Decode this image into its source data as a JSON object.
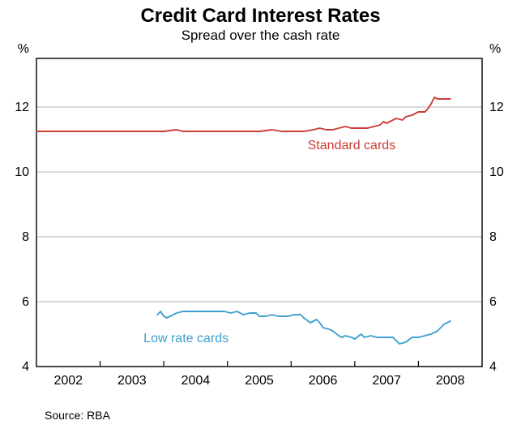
{
  "header": {
    "title": "Credit Card Interest Rates",
    "subtitle": "Spread over the cash rate"
  },
  "footer": {
    "source": "Source: RBA"
  },
  "chart_data": {
    "type": "line",
    "title": "Credit Card Interest Rates",
    "subtitle": "Spread over the cash rate",
    "unit_label": "%",
    "source": "Source: RBA",
    "xlim": [
      2001.5,
      2008.5
    ],
    "ylim": [
      4,
      13.5
    ],
    "gridlines": [
      6,
      8,
      10,
      12
    ],
    "y_ticks": [
      4,
      6,
      8,
      10,
      12
    ],
    "x_year_labels": [
      "2002",
      "2003",
      "2004",
      "2005",
      "2006",
      "2007",
      "2008"
    ],
    "x_year_positions": [
      2002,
      2003,
      2004,
      2005,
      2006,
      2007,
      2008
    ],
    "x_tick_positions": [
      2002.5,
      2003.5,
      2004.5,
      2005.5,
      2006.5,
      2007.5
    ],
    "grid_color": "#b5b5b5",
    "axis_color": "#000000",
    "series": [
      {
        "name": "Standard cards",
        "color": "#cb3d35",
        "label_pos": {
          "x": 2006.45,
          "y": 10.7
        },
        "points": [
          [
            2001.5,
            11.25
          ],
          [
            2002.0,
            11.25
          ],
          [
            2002.5,
            11.25
          ],
          [
            2003.0,
            11.25
          ],
          [
            2003.5,
            11.25
          ],
          [
            2003.7,
            11.3
          ],
          [
            2003.8,
            11.25
          ],
          [
            2004.2,
            11.25
          ],
          [
            2004.6,
            11.25
          ],
          [
            2005.0,
            11.25
          ],
          [
            2005.2,
            11.3
          ],
          [
            2005.35,
            11.25
          ],
          [
            2005.7,
            11.25
          ],
          [
            2005.85,
            11.3
          ],
          [
            2005.95,
            11.35
          ],
          [
            2006.05,
            11.3
          ],
          [
            2006.15,
            11.3
          ],
          [
            2006.25,
            11.35
          ],
          [
            2006.35,
            11.4
          ],
          [
            2006.45,
            11.35
          ],
          [
            2006.55,
            11.35
          ],
          [
            2006.7,
            11.35
          ],
          [
            2006.8,
            11.4
          ],
          [
            2006.9,
            11.45
          ],
          [
            2006.95,
            11.55
          ],
          [
            2007.0,
            11.5
          ],
          [
            2007.1,
            11.6
          ],
          [
            2007.15,
            11.65
          ],
          [
            2007.25,
            11.6
          ],
          [
            2007.3,
            11.7
          ],
          [
            2007.4,
            11.75
          ],
          [
            2007.45,
            11.8
          ],
          [
            2007.5,
            11.85
          ],
          [
            2007.6,
            11.85
          ],
          [
            2007.65,
            11.95
          ],
          [
            2007.7,
            12.1
          ],
          [
            2007.75,
            12.3
          ],
          [
            2007.8,
            12.25
          ],
          [
            2007.9,
            12.25
          ],
          [
            2008.0,
            12.25
          ]
        ]
      },
      {
        "name": "Low rate cards",
        "color": "#3fa0cd",
        "label_pos": {
          "x": 2003.85,
          "y": 4.75
        },
        "points": [
          [
            2003.4,
            5.6
          ],
          [
            2003.45,
            5.7
          ],
          [
            2003.5,
            5.55
          ],
          [
            2003.55,
            5.5
          ],
          [
            2003.6,
            5.55
          ],
          [
            2003.7,
            5.65
          ],
          [
            2003.8,
            5.7
          ],
          [
            2003.9,
            5.7
          ],
          [
            2004.1,
            5.7
          ],
          [
            2004.3,
            5.7
          ],
          [
            2004.45,
            5.7
          ],
          [
            2004.55,
            5.65
          ],
          [
            2004.65,
            5.7
          ],
          [
            2004.75,
            5.6
          ],
          [
            2004.85,
            5.65
          ],
          [
            2004.95,
            5.65
          ],
          [
            2005.0,
            5.55
          ],
          [
            2005.1,
            5.55
          ],
          [
            2005.2,
            5.6
          ],
          [
            2005.3,
            5.55
          ],
          [
            2005.45,
            5.55
          ],
          [
            2005.55,
            5.6
          ],
          [
            2005.65,
            5.6
          ],
          [
            2005.7,
            5.5
          ],
          [
            2005.8,
            5.35
          ],
          [
            2005.9,
            5.45
          ],
          [
            2005.95,
            5.35
          ],
          [
            2006.0,
            5.2
          ],
          [
            2006.1,
            5.15
          ],
          [
            2006.15,
            5.1
          ],
          [
            2006.25,
            4.95
          ],
          [
            2006.3,
            4.9
          ],
          [
            2006.35,
            4.95
          ],
          [
            2006.45,
            4.9
          ],
          [
            2006.5,
            4.85
          ],
          [
            2006.6,
            5.0
          ],
          [
            2006.65,
            4.9
          ],
          [
            2006.75,
            4.95
          ],
          [
            2006.85,
            4.9
          ],
          [
            2006.95,
            4.9
          ],
          [
            2007.05,
            4.9
          ],
          [
            2007.1,
            4.9
          ],
          [
            2007.2,
            4.7
          ],
          [
            2007.3,
            4.75
          ],
          [
            2007.4,
            4.9
          ],
          [
            2007.5,
            4.9
          ],
          [
            2007.6,
            4.95
          ],
          [
            2007.7,
            5.0
          ],
          [
            2007.8,
            5.1
          ],
          [
            2007.9,
            5.3
          ],
          [
            2008.0,
            5.4
          ]
        ]
      }
    ]
  }
}
